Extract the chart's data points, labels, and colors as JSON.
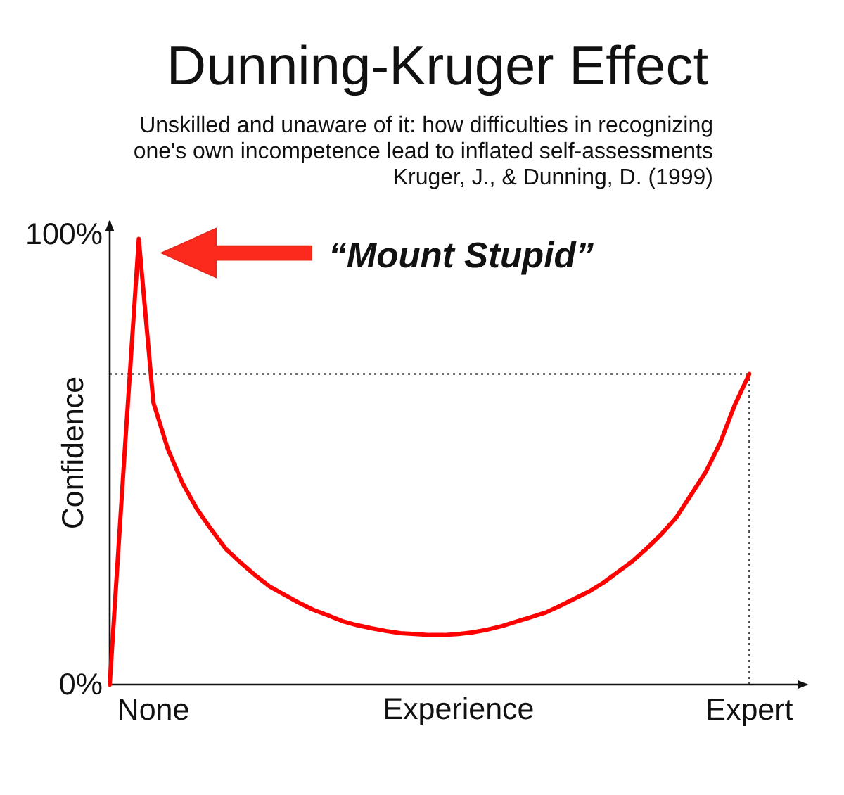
{
  "chart_data": {
    "type": "line",
    "title": "Dunning-Kruger Effect",
    "subtitle": "Unskilled and unaware of it: how difficulties in recognizing\none's own incompetence lead to inflated self-assessments\nKruger, J., & Dunning, D. (1999)",
    "xlabel": "Experience",
    "ylabel": "Confidence",
    "annotations": [
      "“Mount Stupid”"
    ],
    "categories": [
      null,
      null,
      null,
      "None",
      null,
      null,
      null,
      null,
      null,
      null,
      null,
      null,
      null,
      null,
      null,
      null,
      null,
      null,
      null,
      null,
      null,
      null,
      null,
      null,
      null,
      null,
      null,
      null,
      null,
      null,
      null,
      null,
      null,
      null,
      null,
      null,
      null,
      null,
      null,
      null,
      null,
      null,
      null,
      null,
      "Expert",
      null,
      null,
      null,
      null
    ],
    "series": [
      {
        "color": "#ff0000",
        "values": [
          0,
          50.3,
          99,
          62.7,
          52.3,
          44.8,
          39.0,
          34.4,
          30.1,
          27.1,
          24.3,
          21.8,
          20.0,
          18.2,
          16.6,
          15.4,
          14.1,
          13.2,
          12.5,
          11.9,
          11.4,
          11.2,
          11.0,
          11.0,
          11.2,
          11.6,
          12.2,
          13.0,
          14.0,
          15.0,
          16.0,
          17.5,
          19.1,
          20.7,
          22.7,
          25.1,
          27.5,
          30.4,
          33.6,
          37.2,
          42.2,
          47.2,
          53.7,
          62.1,
          69,
          null,
          null,
          null,
          null
        ]
      }
    ],
    "ylim": [
      0,
      103
    ],
    "yticks": [
      {
        "value": 0,
        "label": "0%"
      },
      {
        "value": 100,
        "label": "100%"
      }
    ],
    "ref_lines": [
      {
        "axis": "y",
        "value": 69
      },
      {
        "axis": "x",
        "value": "Expert"
      }
    ]
  }
}
